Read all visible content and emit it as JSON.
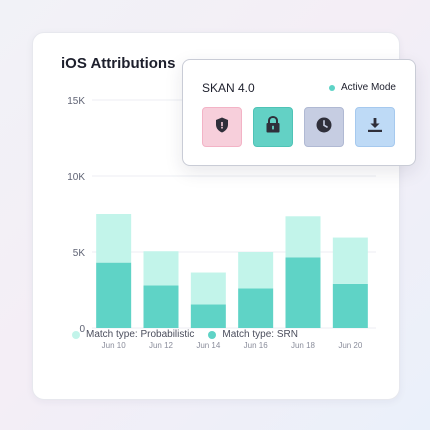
{
  "card": {
    "title": "iOS Attributions"
  },
  "popover": {
    "title": "SKAN 4.0",
    "status": "Active Mode",
    "status_color": "#5ed3c6",
    "tiles": [
      {
        "icon": "shield-icon",
        "bg": "#f7cfdb",
        "border": "#f3b3c6",
        "fg": "#2f2f3a"
      },
      {
        "icon": "lock-icon",
        "bg": "#63d1c5",
        "border": "#4fc3b6",
        "fg": "#2f2f3a"
      },
      {
        "icon": "clock-icon",
        "bg": "#c6cde2",
        "border": "#b0b9d3",
        "fg": "#2f2f3a"
      },
      {
        "icon": "download-icon",
        "bg": "#bedaf6",
        "border": "#a6c9ee",
        "fg": "#2f2f3a"
      }
    ]
  },
  "chart_data": {
    "type": "bar",
    "stacked": true,
    "categories": [
      "Jun 10",
      "Jun 12",
      "Jun 14",
      "Jun 16",
      "Jun 18",
      "Jun 20"
    ],
    "series": [
      {
        "name": "Match type: SRN",
        "color": "#5fd3c6",
        "values": [
          4300,
          2800,
          1550,
          2600,
          4650,
          2900
        ]
      },
      {
        "name": "Match type: Probabilistic",
        "color": "#c2f4ea",
        "values": [
          3200,
          2250,
          2100,
          2400,
          2700,
          3050
        ]
      }
    ],
    "ylim": [
      0,
      15000
    ],
    "yticks": [
      0,
      5000,
      10000,
      15000
    ],
    "ytick_labels": [
      "0",
      "5K",
      "10K",
      "15K"
    ],
    "grid": true,
    "legend_position": "bottom",
    "legend_order": [
      "Match type: Probabilistic",
      "Match type: SRN"
    ]
  }
}
